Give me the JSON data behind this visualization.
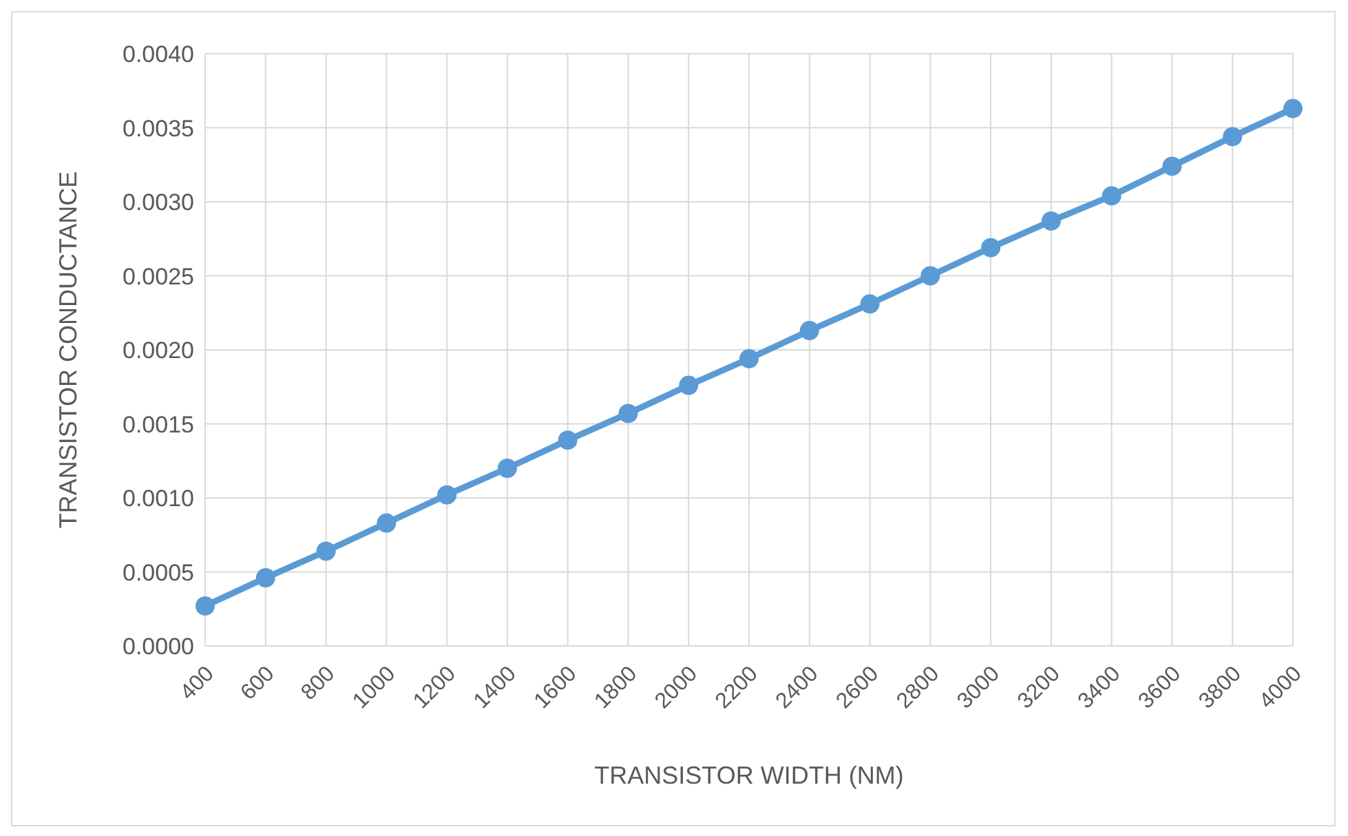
{
  "chart_data": {
    "type": "line",
    "xlabel": "TRANSISTOR WIDTH (NM)",
    "ylabel": "TRANSISTOR CONDUCTANCE",
    "categories": [
      "400",
      "600",
      "800",
      "1000",
      "1200",
      "1400",
      "1600",
      "1800",
      "2000",
      "2200",
      "2400",
      "2600",
      "2800",
      "3000",
      "3200",
      "3400",
      "3600",
      "3800",
      "4000"
    ],
    "series": [
      {
        "color": "#5b9bd5",
        "values": [
          0.00027,
          0.00046,
          0.00064,
          0.00083,
          0.00102,
          0.0012,
          0.00139,
          0.00157,
          0.00176,
          0.00194,
          0.00213,
          0.00231,
          0.0025,
          0.00269,
          0.00287,
          0.00304,
          0.00324,
          0.00344,
          0.00363
        ]
      }
    ],
    "ylim": [
      0,
      0.004
    ],
    "yticks": [
      {
        "value": 0,
        "label": "0.0000"
      },
      {
        "value": 0.0005,
        "label": "0.0005"
      },
      {
        "value": 0.001,
        "label": "0.0010"
      },
      {
        "value": 0.0015,
        "label": "0.0015"
      },
      {
        "value": 0.002,
        "label": "0.0020"
      },
      {
        "value": 0.0025,
        "label": "0.0025"
      },
      {
        "value": 0.003,
        "label": "0.0030"
      },
      {
        "value": 0.0035,
        "label": "0.0035"
      },
      {
        "value": 0.004,
        "label": "0.0040"
      }
    ],
    "grid": true,
    "marker": "circle",
    "line_style": "solid"
  }
}
